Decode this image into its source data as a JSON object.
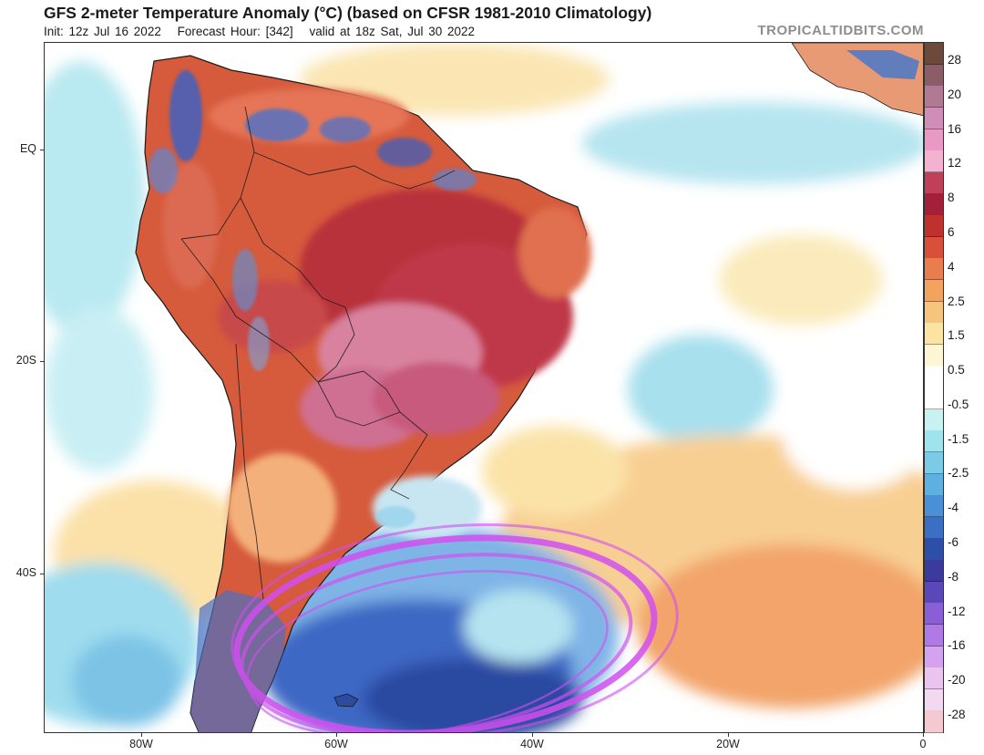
{
  "header": {
    "title": "GFS 2-meter Temperature Anomaly (°C) (based on CFSR 1981-2010 Climatology)",
    "init": "Init: 12z Jul 16 2022",
    "forecast_hour": "Forecast Hour: [342]",
    "valid": "valid at 18z Sat, Jul 30 2022",
    "brand": "TROPICALTIDBITS.COM"
  },
  "axes": {
    "lat_labels": [
      "EQ",
      "20S",
      "40S"
    ],
    "lon_labels": [
      "80W",
      "60W",
      "40W",
      "20W",
      "0"
    ]
  },
  "colorbar": {
    "labels": [
      "28",
      "20",
      "16",
      "12",
      "8",
      "6",
      "4",
      "2.5",
      "1.5",
      "0.5",
      "-0.5",
      "-1.5",
      "-2.5",
      "-4",
      "-6",
      "-8",
      "-12",
      "-16",
      "-20",
      "-28"
    ],
    "colors": [
      "#6b4a3c",
      "#8b5d66",
      "#b07a94",
      "#cf8eb8",
      "#e89ac4",
      "#f3b2cf",
      "#c0405a",
      "#a4203a",
      "#c0302c",
      "#d9503a",
      "#ea7d4e",
      "#f3a35e",
      "#f7c47e",
      "#fbe3a3",
      "#fdf6d4",
      "#ffffff",
      "#ffffff",
      "#c8f1f2",
      "#9fe3ec",
      "#7ccbe6",
      "#5eb0e0",
      "#4a90d6",
      "#3a6fc4",
      "#2d4fa8",
      "#3a3b9a",
      "#5a48b8",
      "#8a5fd6",
      "#b07ae6",
      "#d4a2ee",
      "#eac4ee",
      "#f3d9f0",
      "#f5c9d2"
    ]
  },
  "map": {
    "colors": {
      "ocean_neutral": "#ffffff",
      "ocean_cool": "#a9e4ef",
      "ocean_warm": "#f6cc8f",
      "ocean_warm_strong": "#ee9a62",
      "land_warm": "#d75a3c",
      "land_hot": "#b8303a",
      "land_very_hot": "#d77b9f",
      "land_cold": "#3b6fc3",
      "ocean_cold": "#4d7dd4",
      "ocean_very_cold": "#2a4aa0",
      "annotation": "#d24ff0",
      "borders": "#1a1a1a"
    }
  }
}
